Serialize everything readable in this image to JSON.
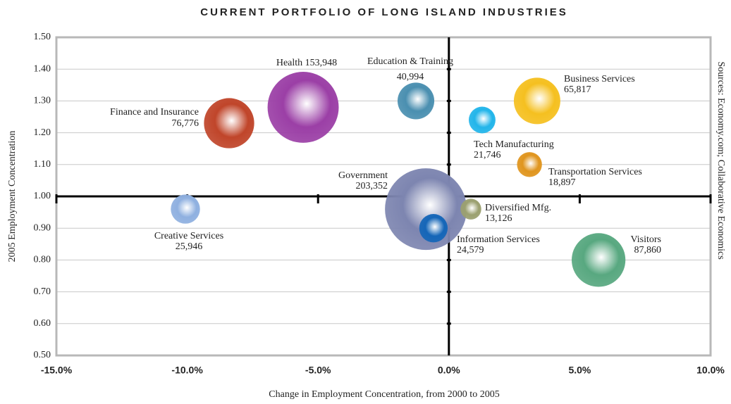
{
  "chart_data": {
    "type": "bubble",
    "title": "CURRENT PORTFOLIO OF LONG ISLAND INDUSTRIES",
    "x_label": "Change in Employment Concentration, from 2000 to 2005",
    "y_label": "2005 Employment Concentration",
    "source": "Sources: Economy.com; Collaborative Economics",
    "names": [
      "Health",
      "Finance and Insurance",
      "Education & Training",
      "Business Services",
      "Tech Manufacturing",
      "Transportation Services",
      "Government",
      "Creative Services",
      "Diversified Mfg.",
      "Information Services",
      "Visitors"
    ],
    "x": [
      -5.57,
      -8.4,
      -1.26,
      3.37,
      1.27,
      3.08,
      -0.88,
      -10.07,
      0.84,
      -0.59,
      5.72
    ],
    "values": [
      1.28,
      1.23,
      1.3,
      1.3,
      1.24,
      1.1,
      0.96,
      0.96,
      0.96,
      0.9,
      0.8
    ],
    "sizes": [
      153948,
      76776,
      40994,
      65817,
      21746,
      18897,
      203352,
      25946,
      13126,
      24579,
      87860
    ],
    "size_labels": [
      "153,948",
      "76,776",
      "40,994",
      "65,817",
      "21,746",
      "18,897",
      "203,352",
      "25,946",
      "13,126",
      "24,579",
      "87,860"
    ],
    "colors": [
      "#9b3fa6",
      "#c0452a",
      "#4a8fb0",
      "#f5c020",
      "#22b5ea",
      "#e0951e",
      "#7d85b0",
      "#8fb0e0",
      "#9ba070",
      "#1566b8",
      "#58a880"
    ],
    "xlim": [
      -15,
      10
    ],
    "xticks": [
      {
        "value": -15,
        "label": "-15.0%"
      },
      {
        "value": -10,
        "label": "-10.0%"
      },
      {
        "value": -5,
        "label": "-5.0%"
      },
      {
        "value": 0,
        "label": "0.0%"
      },
      {
        "value": 5,
        "label": "5.0%"
      },
      {
        "value": 10,
        "label": "10.0%"
      }
    ],
    "ylim": [
      0.5,
      1.5
    ],
    "yticks": [
      {
        "value": 0.5,
        "label": "0.50"
      },
      {
        "value": 0.6,
        "label": "0.60"
      },
      {
        "value": 0.7,
        "label": "0.70"
      },
      {
        "value": 0.8,
        "label": "0.80"
      },
      {
        "value": 0.9,
        "label": "0.90"
      },
      {
        "value": 1.0,
        "label": "1.00"
      },
      {
        "value": 1.1,
        "label": "1.10"
      },
      {
        "value": 1.2,
        "label": "1.20"
      },
      {
        "value": 1.3,
        "label": "1.30"
      },
      {
        "value": 1.4,
        "label": "1.40"
      },
      {
        "value": 1.5,
        "label": "1.50"
      }
    ],
    "grid": true
  }
}
